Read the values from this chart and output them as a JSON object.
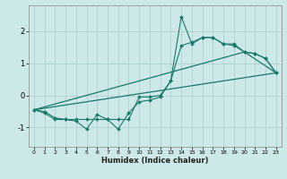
{
  "title": "",
  "xlabel": "Humidex (Indice chaleur)",
  "bg_color": "#cce8e8",
  "grid_color": "#aacccc",
  "line_color": "#1a7a6a",
  "xlim": [
    -0.5,
    23.5
  ],
  "ylim": [
    -1.6,
    2.8
  ],
  "yticks": [
    -1,
    0,
    1,
    2
  ],
  "xticks": [
    0,
    1,
    2,
    3,
    4,
    5,
    6,
    7,
    8,
    9,
    10,
    11,
    12,
    13,
    14,
    15,
    16,
    17,
    18,
    19,
    20,
    21,
    22,
    23
  ],
  "jagged_x": [
    0,
    1,
    2,
    3,
    4,
    5,
    6,
    7,
    8,
    9,
    10,
    11,
    12,
    13,
    14,
    15,
    16,
    17,
    18,
    19,
    20,
    21,
    22,
    23
  ],
  "jagged_y": [
    -0.45,
    -0.55,
    -0.75,
    -0.75,
    -0.8,
    -1.05,
    -0.6,
    -0.75,
    -1.05,
    -0.55,
    -0.2,
    -0.15,
    -0.05,
    0.45,
    1.55,
    1.65,
    1.8,
    1.8,
    1.6,
    1.55,
    1.35,
    1.3,
    1.15,
    0.7
  ],
  "peaked_x": [
    0,
    1,
    2,
    3,
    4,
    5,
    6,
    7,
    8,
    9,
    10,
    11,
    12,
    13,
    14,
    15,
    16,
    17,
    18,
    19,
    20,
    21,
    22,
    23
  ],
  "peaked_y": [
    -0.45,
    -0.5,
    -0.7,
    -0.75,
    -0.75,
    -0.75,
    -0.75,
    -0.75,
    -0.75,
    -0.75,
    -0.05,
    -0.05,
    0.0,
    0.45,
    2.45,
    1.6,
    1.8,
    1.8,
    1.6,
    1.6,
    1.35,
    1.3,
    1.15,
    0.7
  ],
  "line1_x": [
    0,
    23
  ],
  "line1_y": [
    -0.45,
    0.7
  ],
  "line2_x": [
    0,
    20,
    23
  ],
  "line2_y": [
    -0.45,
    1.35,
    0.7
  ]
}
